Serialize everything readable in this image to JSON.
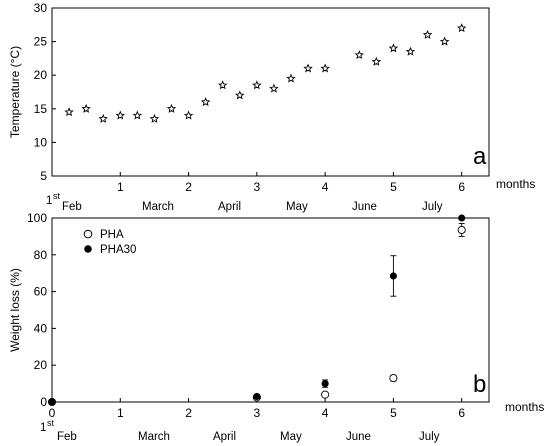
{
  "figure": {
    "month_names": [
      "Feb",
      "March",
      "April",
      "May",
      "June",
      "July"
    ],
    "start_label_sup": "st",
    "start_label_num": "1"
  },
  "chart_data": [
    {
      "type": "scatter",
      "panel_tag": "a",
      "ylabel": "Temperature (°C)",
      "xlabel": "months",
      "xlim": [
        0,
        6.4
      ],
      "ylim": [
        5,
        30
      ],
      "xticks": [
        1,
        2,
        3,
        4,
        5,
        6
      ],
      "yticks": [
        5,
        10,
        15,
        20,
        25,
        30
      ],
      "marker": "star",
      "points": [
        {
          "x": 0.25,
          "y": 14.5
        },
        {
          "x": 0.5,
          "y": 15.0
        },
        {
          "x": 0.75,
          "y": 13.5
        },
        {
          "x": 1.0,
          "y": 14.0
        },
        {
          "x": 1.25,
          "y": 14.0
        },
        {
          "x": 1.5,
          "y": 13.5
        },
        {
          "x": 1.75,
          "y": 15.0
        },
        {
          "x": 2.0,
          "y": 14.0
        },
        {
          "x": 2.25,
          "y": 16.0
        },
        {
          "x": 2.5,
          "y": 18.5
        },
        {
          "x": 2.75,
          "y": 17.0
        },
        {
          "x": 3.0,
          "y": 18.5
        },
        {
          "x": 3.25,
          "y": 18.0
        },
        {
          "x": 3.5,
          "y": 19.5
        },
        {
          "x": 3.75,
          "y": 21.0
        },
        {
          "x": 4.0,
          "y": 21.0
        },
        {
          "x": 4.5,
          "y": 23.0
        },
        {
          "x": 4.75,
          "y": 22.0
        },
        {
          "x": 5.0,
          "y": 24.0
        },
        {
          "x": 5.25,
          "y": 23.5
        },
        {
          "x": 5.5,
          "y": 26.0
        },
        {
          "x": 5.75,
          "y": 25.0
        },
        {
          "x": 6.0,
          "y": 27.0
        }
      ]
    },
    {
      "type": "scatter",
      "panel_tag": "b",
      "ylabel": "Weight loss (%)",
      "xlabel": "months",
      "xlim": [
        0,
        6.4
      ],
      "ylim": [
        0,
        100
      ],
      "xticks": [
        0,
        1,
        2,
        3,
        4,
        5,
        6
      ],
      "yticks": [
        0,
        20,
        40,
        60,
        80,
        100
      ],
      "legend": "top-left",
      "series": [
        {
          "name": "PHA",
          "marker": "open-circle",
          "points": [
            {
              "x": 0,
              "y": 0,
              "err": 0
            },
            {
              "x": 3,
              "y": 2.5,
              "err": 0
            },
            {
              "x": 4,
              "y": 4.0,
              "err": 0
            },
            {
              "x": 5,
              "y": 13.0,
              "err": 1.5
            },
            {
              "x": 6,
              "y": 93.5,
              "err": 3.5
            }
          ]
        },
        {
          "name": "PHA30",
          "marker": "filled-circle",
          "points": [
            {
              "x": 0,
              "y": 0,
              "err": 0
            },
            {
              "x": 3,
              "y": 3.0,
              "err": 1.0
            },
            {
              "x": 4,
              "y": 10.0,
              "err": 2.0
            },
            {
              "x": 5,
              "y": 68.5,
              "err": 11.0
            },
            {
              "x": 6,
              "y": 100.0,
              "err": 0
            }
          ]
        }
      ]
    }
  ]
}
